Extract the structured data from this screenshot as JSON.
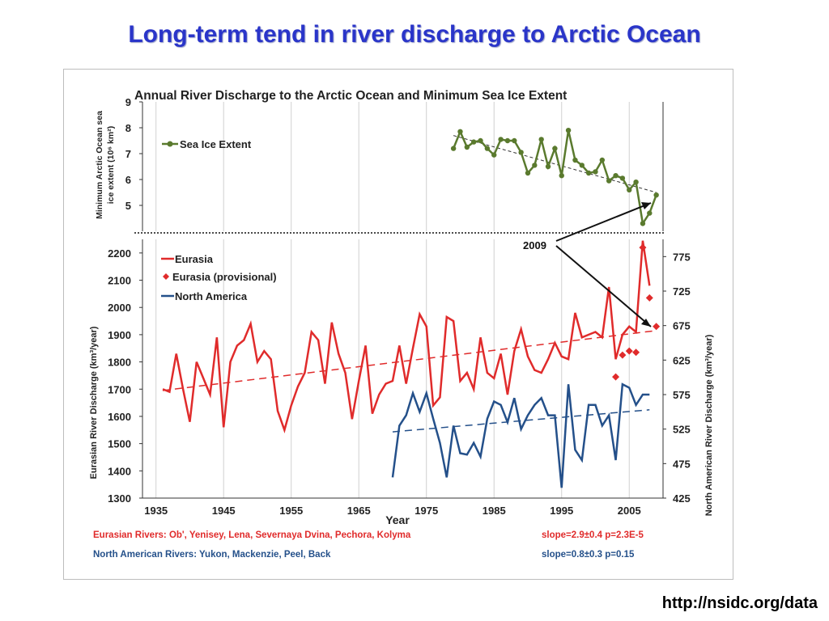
{
  "slide": {
    "title": "Long-term tend in river discharge to Arctic Ocean",
    "footer": "http://nsidc.org/data"
  },
  "chart_data": {
    "type": "line",
    "title": "Annual River Discharge to the Arctic Ocean and Minimum Sea Ice Extent",
    "xlabel": "Year",
    "x_ticks": [
      1935,
      1945,
      1955,
      1965,
      1975,
      1985,
      1995,
      2005
    ],
    "xlim": [
      1933,
      2010
    ],
    "grid": true,
    "top_panel": {
      "ylabel_line1": "Minimum Arctic Ocean sea",
      "ylabel_line2": "ice extent (10⁶ km²)",
      "ylim": [
        4,
        9
      ],
      "y_ticks": [
        5,
        6,
        7,
        8,
        9
      ],
      "legend": "Sea Ice Extent",
      "legend_position": "top-left",
      "color": "#5a7a2e",
      "series": {
        "name": "Sea Ice Extent",
        "x": [
          1979,
          1980,
          1981,
          1982,
          1983,
          1984,
          1985,
          1986,
          1987,
          1988,
          1989,
          1990,
          1991,
          1992,
          1993,
          1994,
          1995,
          1996,
          1997,
          1998,
          1999,
          2000,
          2001,
          2002,
          2003,
          2004,
          2005,
          2006,
          2007,
          2008,
          2009
        ],
        "y": [
          7.2,
          7.85,
          7.25,
          7.45,
          7.5,
          7.2,
          6.95,
          7.55,
          7.5,
          7.5,
          7.05,
          6.25,
          6.55,
          7.55,
          6.5,
          7.2,
          6.15,
          7.9,
          6.75,
          6.55,
          6.25,
          6.3,
          6.75,
          5.95,
          6.15,
          6.05,
          5.6,
          5.9,
          4.3,
          4.7,
          5.4
        ]
      },
      "trend": {
        "x": [
          1979,
          2009
        ],
        "y": [
          7.7,
          5.5
        ]
      }
    },
    "bottom_panel": {
      "ylabel_left": "Eurasian River Discharge (km³/year)",
      "ylabel_right": "North American River Discharge (km³/year)",
      "ylim_left": [
        1300,
        2250
      ],
      "y_ticks_left": [
        1300,
        1400,
        1500,
        1600,
        1700,
        1800,
        1900,
        2000,
        2100,
        2200
      ],
      "ylim_right": [
        425,
        800
      ],
      "y_ticks_right": [
        425,
        475,
        525,
        575,
        625,
        675,
        725,
        775
      ],
      "legend_position": "top-left",
      "legend": [
        "Eurasia",
        "Eurasia (provisional)",
        "North America"
      ],
      "annotation": "2009",
      "series": [
        {
          "name": "Eurasia",
          "axis": "left",
          "color": "#e02b2b",
          "x": [
            1936,
            1937,
            1938,
            1939,
            1940,
            1941,
            1942,
            1943,
            1944,
            1945,
            1946,
            1947,
            1948,
            1949,
            1950,
            1951,
            1952,
            1953,
            1954,
            1955,
            1956,
            1957,
            1958,
            1959,
            1960,
            1961,
            1962,
            1963,
            1964,
            1965,
            1966,
            1967,
            1968,
            1969,
            1970,
            1971,
            1972,
            1973,
            1974,
            1975,
            1976,
            1977,
            1978,
            1979,
            1980,
            1981,
            1982,
            1983,
            1984,
            1985,
            1986,
            1987,
            1988,
            1989,
            1990,
            1991,
            1992,
            1993,
            1994,
            1995,
            1996,
            1997,
            1998,
            1999,
            2000,
            2001,
            2002,
            2003,
            2004,
            2005,
            2006,
            2007,
            2008
          ],
          "y": [
            1700,
            1690,
            1830,
            1700,
            1580,
            1800,
            1740,
            1680,
            1890,
            1560,
            1800,
            1860,
            1880,
            1940,
            1800,
            1840,
            1810,
            1620,
            1550,
            1640,
            1710,
            1760,
            1910,
            1880,
            1720,
            1945,
            1830,
            1760,
            1590,
            1730,
            1860,
            1610,
            1680,
            1720,
            1730,
            1860,
            1720,
            1850,
            1975,
            1930,
            1640,
            1670,
            1965,
            1950,
            1730,
            1760,
            1700,
            1890,
            1760,
            1740,
            1830,
            1680,
            1840,
            1920,
            1820,
            1770,
            1760,
            1810,
            1870,
            1820,
            1810,
            1980,
            1890,
            1900,
            1910,
            1890,
            2075,
            1810,
            1900,
            1930,
            1910,
            2245,
            2080
          ]
        },
        {
          "name": "Eurasia (provisional)",
          "axis": "left",
          "color": "#e02b2b",
          "x": [
            2003,
            2004,
            2005,
            2006,
            2007,
            2008,
            2009
          ],
          "y": [
            1745,
            1825,
            1840,
            1835,
            2220,
            2035,
            1930
          ]
        },
        {
          "name": "North America",
          "axis": "right",
          "color": "#24508a",
          "x": [
            1970,
            1971,
            1972,
            1973,
            1974,
            1975,
            1976,
            1977,
            1978,
            1979,
            1980,
            1981,
            1982,
            1983,
            1984,
            1985,
            1986,
            1987,
            1988,
            1989,
            1990,
            1991,
            1992,
            1993,
            1994,
            1995,
            1996,
            1997,
            1998,
            1999,
            2000,
            2001,
            2002,
            2003,
            2004,
            2005,
            2006,
            2007,
            2008
          ],
          "y": [
            455,
            530,
            545,
            577,
            550,
            577,
            540,
            505,
            455,
            530,
            490,
            488,
            505,
            485,
            540,
            565,
            560,
            535,
            570,
            525,
            545,
            560,
            570,
            545,
            545,
            440,
            590,
            495,
            480,
            560,
            560,
            530,
            545,
            480,
            590,
            585,
            560,
            575,
            575
          ]
        }
      ],
      "trends": [
        {
          "name": "Eurasia trend",
          "axis": "left",
          "x": [
            1936,
            2009
          ],
          "y": [
            1695,
            1915
          ]
        },
        {
          "name": "North America trend",
          "axis": "right",
          "x": [
            1970,
            2008
          ],
          "y": [
            521,
            553
          ]
        }
      ]
    },
    "notes": {
      "eurasian_rivers": "Eurasian Rivers: Ob', Yenisey, Lena, Severnaya Dvina, Pechora, Kolyma",
      "eurasian_slope": "slope=2.9±0.4  p=2.3E-5",
      "na_rivers": "North American Rivers: Yukon, Mackenzie, Peel, Back",
      "na_slope": "slope=0.8±0.3  p=0.15"
    }
  }
}
